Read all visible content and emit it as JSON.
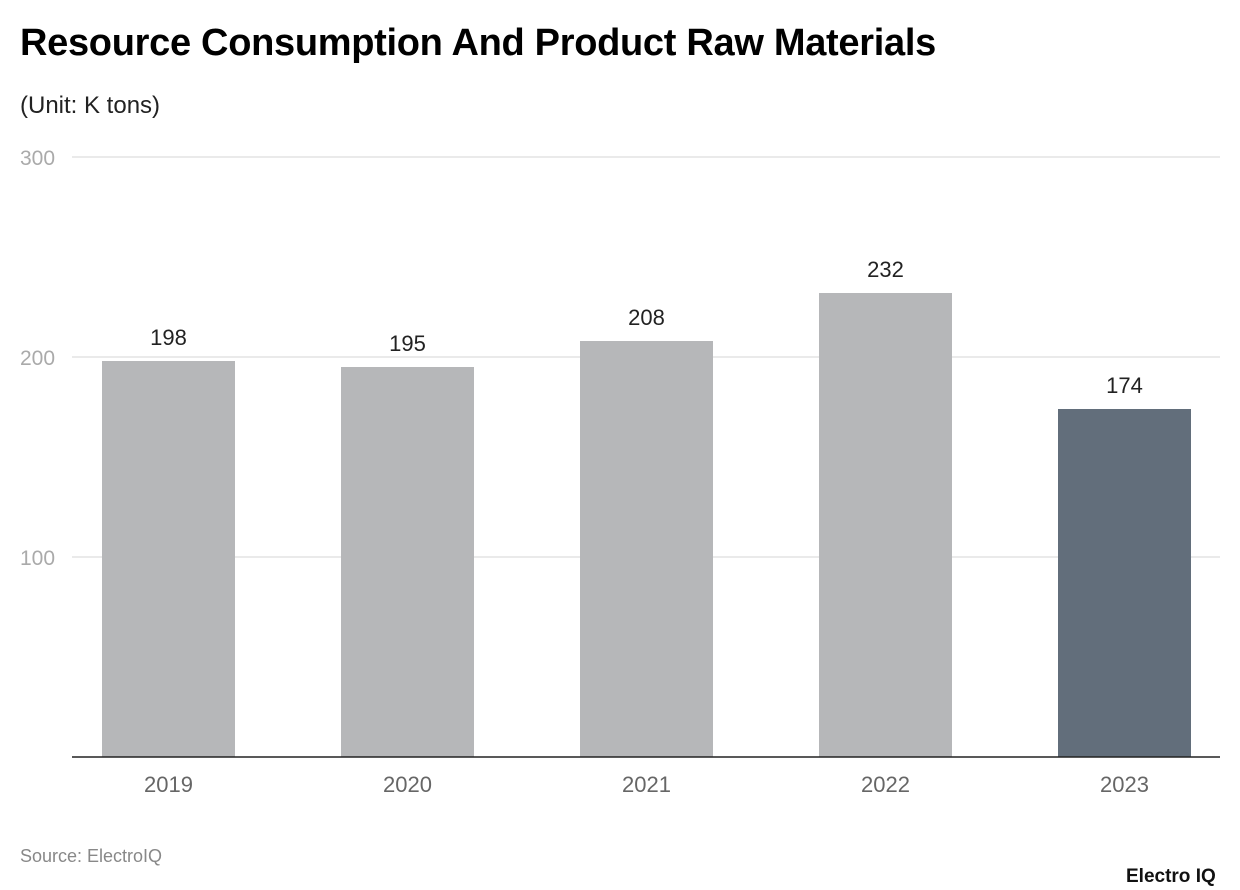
{
  "chart_data": {
    "type": "bar",
    "title": "Resource Consumption And Product Raw Materials",
    "subtitle": "(Unit: K tons)",
    "categories": [
      "2019",
      "2020",
      "2021",
      "2022",
      "2023"
    ],
    "values": [
      198,
      195,
      208,
      232,
      174
    ],
    "ylim": [
      0,
      300
    ],
    "yticks": [
      100,
      200,
      300
    ],
    "grid": true,
    "colors": {
      "default": "#b6b7b9",
      "highlight": "#626e7b"
    },
    "highlight_index": 4
  },
  "source": "Source: ElectroIQ",
  "logo": "Electro IQ"
}
